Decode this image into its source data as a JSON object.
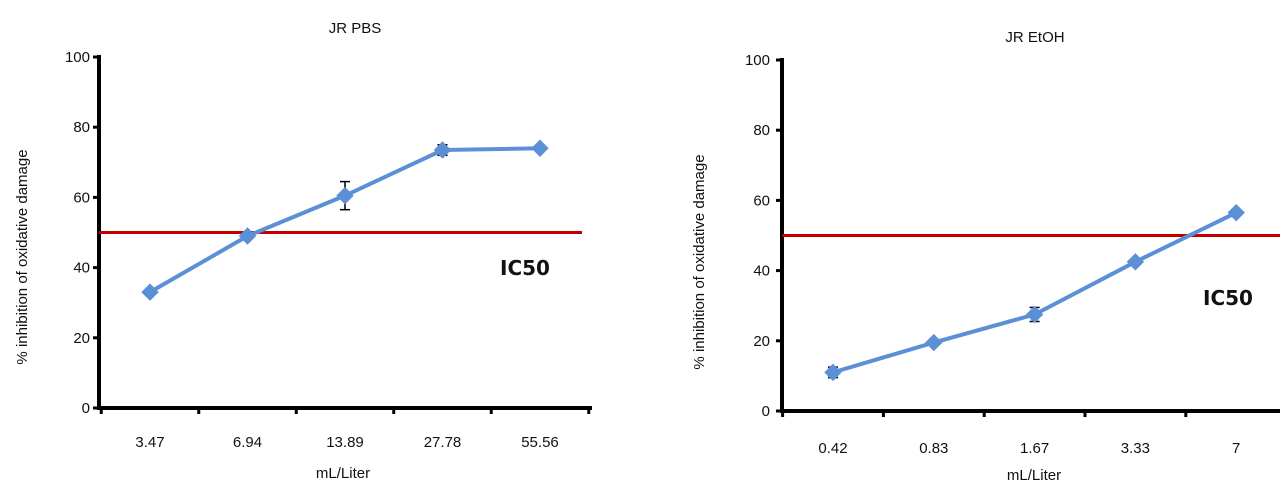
{
  "chart_data": [
    {
      "type": "line",
      "title": "JR PBS",
      "xlabel": "mL/Liter",
      "ylabel": "% inhibition of oxidative damage",
      "categories": [
        "3.47",
        "6.94",
        "13.89",
        "27.78",
        "55.56"
      ],
      "values": [
        33,
        49,
        60.5,
        73.5,
        74
      ],
      "error": [
        0,
        0,
        4,
        1.5,
        0
      ],
      "ylim": [
        0,
        100
      ],
      "yticks": [
        "0",
        "20",
        "40",
        "60",
        "80",
        "100"
      ],
      "reference_line": {
        "value": 50,
        "label": "IC50",
        "color": "#c00000"
      },
      "line_color": "#5b8fd6",
      "grid": false,
      "legend": "none"
    },
    {
      "type": "line",
      "title": "JR EtOH",
      "xlabel": "mL/Liter",
      "ylabel": "% inhibition of oxidative damage",
      "categories": [
        "0.42",
        "0.83",
        "1.67",
        "3.33",
        "7"
      ],
      "values": [
        11,
        19.5,
        27.5,
        42.5,
        56.5
      ],
      "error": [
        1.5,
        0,
        2,
        0,
        0
      ],
      "ylim": [
        0,
        100
      ],
      "yticks": [
        "0",
        "20",
        "40",
        "60",
        "80",
        "100"
      ],
      "reference_line": {
        "value": 50,
        "label": "IC50",
        "color": "#c00000"
      },
      "line_color": "#5b8fd6",
      "grid": false,
      "legend": "none"
    }
  ]
}
